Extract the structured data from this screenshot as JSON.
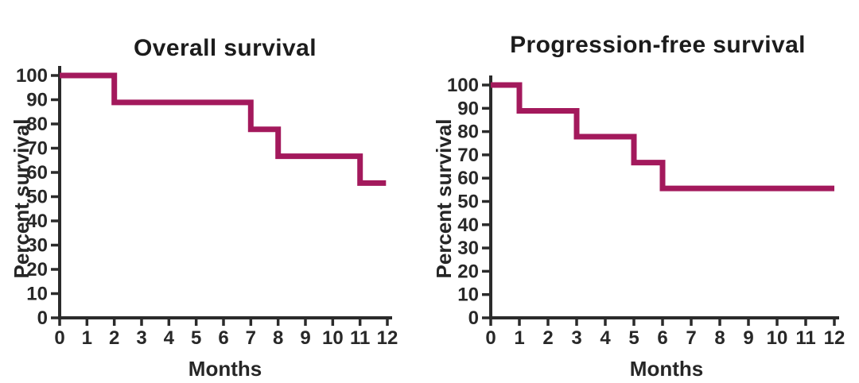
{
  "figure": {
    "background": "#ffffff",
    "axis_color": "#2b2b2b",
    "text_color": "#282828",
    "curve_color": "#A3195C"
  },
  "chart_data": [
    {
      "type": "line",
      "subtype": "kaplan-meier-step",
      "title": "Overall survival",
      "xlabel": "Months",
      "ylabel": "Percent survival",
      "xlim": [
        0,
        12
      ],
      "ylim": [
        0,
        100
      ],
      "x_ticks": [
        0,
        1,
        2,
        3,
        4,
        5,
        6,
        7,
        8,
        9,
        10,
        11,
        12
      ],
      "y_ticks": [
        0,
        10,
        20,
        30,
        40,
        50,
        60,
        70,
        80,
        90,
        100
      ],
      "grid": false,
      "legend": false,
      "line_color": "#A3195C",
      "series": [
        {
          "name": "Overall survival",
          "points": [
            [
              0,
              100
            ],
            [
              2,
              100
            ],
            [
              2,
              88.9
            ],
            [
              7,
              88.9
            ],
            [
              7,
              77.8
            ],
            [
              8,
              77.8
            ],
            [
              8,
              66.7
            ],
            [
              11,
              66.7
            ],
            [
              11,
              55.6
            ],
            [
              11.95,
              55.6
            ]
          ]
        }
      ]
    },
    {
      "type": "line",
      "subtype": "kaplan-meier-step",
      "title": "Progression-free survival",
      "xlabel": "Months",
      "ylabel": "Percent survival",
      "xlim": [
        0,
        12
      ],
      "ylim": [
        0,
        100
      ],
      "x_ticks": [
        0,
        1,
        2,
        3,
        4,
        5,
        6,
        7,
        8,
        9,
        10,
        11,
        12
      ],
      "y_ticks": [
        0,
        10,
        20,
        30,
        40,
        50,
        60,
        70,
        80,
        90,
        100
      ],
      "grid": false,
      "legend": false,
      "line_color": "#A3195C",
      "series": [
        {
          "name": "Progression-free survival",
          "points": [
            [
              0,
              100
            ],
            [
              1,
              100
            ],
            [
              1,
              88.9
            ],
            [
              3,
              88.9
            ],
            [
              3,
              77.8
            ],
            [
              5,
              77.8
            ],
            [
              5,
              66.7
            ],
            [
              6,
              66.7
            ],
            [
              6,
              55.6
            ],
            [
              12,
              55.6
            ]
          ]
        }
      ]
    }
  ]
}
